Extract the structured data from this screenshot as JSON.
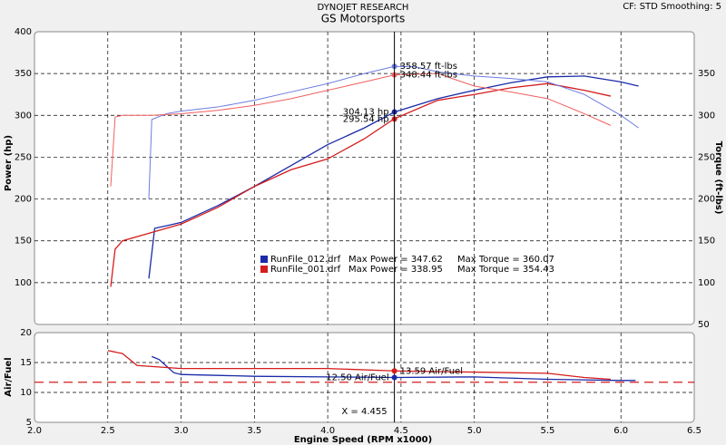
{
  "header_right": "CF: STD  Smoothing: 5",
  "chart_data": [
    {
      "type": "line",
      "title": "DYNOJET RESEARCH",
      "subtitle": "GS Motorsports",
      "ylabel": "Power (hp)",
      "y2label": "Torque (ft-lbs)",
      "xlim": [
        2.0,
        6.5
      ],
      "ylim": [
        50,
        400
      ],
      "yticks": [
        100,
        150,
        200,
        250,
        300,
        350,
        400
      ],
      "y2lim": [
        50,
        400
      ],
      "y2ticks": [
        50,
        100,
        150,
        200,
        250,
        300,
        350
      ],
      "grid": true,
      "series": [
        {
          "name": "RunFile_012.drf",
          "color": "#1a2aa8",
          "x": [
            2.78,
            2.82,
            2.9,
            3.0,
            3.25,
            3.5,
            3.75,
            4.0,
            4.25,
            4.455,
            4.75,
            5.0,
            5.25,
            5.5,
            5.75,
            6.0,
            6.12
          ],
          "values": [
            105,
            165,
            168,
            172,
            192,
            215,
            240,
            265,
            285,
            304,
            320,
            330,
            339,
            346,
            347,
            340,
            335
          ]
        },
        {
          "name": "RunFile_001.drf",
          "color": "#d41c1c",
          "x": [
            2.52,
            2.55,
            2.6,
            2.8,
            3.0,
            3.25,
            3.5,
            3.75,
            4.0,
            4.25,
            4.455,
            4.75,
            5.0,
            5.25,
            5.5,
            5.75,
            5.93
          ],
          "values": [
            95,
            140,
            150,
            160,
            170,
            190,
            215,
            235,
            248,
            272,
            296,
            318,
            325,
            333,
            338,
            330,
            323
          ]
        },
        {
          "name": "Torque 012",
          "axis": "y2",
          "color": "#6c7ce0",
          "x": [
            2.78,
            2.8,
            2.9,
            3.0,
            3.25,
            3.5,
            3.75,
            4.0,
            4.25,
            4.455,
            4.6,
            4.75,
            5.0,
            5.25,
            5.5,
            5.75,
            6.0,
            6.12
          ],
          "values": [
            200,
            295,
            302,
            305,
            310,
            318,
            328,
            338,
            350,
            358.57,
            358,
            352,
            347,
            344,
            340,
            325,
            300,
            285
          ]
        },
        {
          "name": "Torque 001",
          "axis": "y2",
          "color": "#f06060",
          "x": [
            2.52,
            2.55,
            2.6,
            2.8,
            3.0,
            3.25,
            3.5,
            3.75,
            4.0,
            4.25,
            4.455,
            4.75,
            5.0,
            5.25,
            5.5,
            5.75,
            5.93
          ],
          "values": [
            215,
            298,
            300,
            300,
            302,
            306,
            312,
            320,
            330,
            340,
            348.44,
            350,
            335,
            328,
            320,
            302,
            288
          ]
        }
      ],
      "legend": [
        {
          "file": "RunFile_012.drf",
          "power": "Max Power = 347.62",
          "torque": "Max Torque = 360.07"
        },
        {
          "file": "RunFile_001.drf",
          "power": "Max Power = 338.95",
          "torque": "Max Torque = 354.43"
        }
      ],
      "markers": [
        {
          "x": 4.455,
          "value": 304.13,
          "label": "304.13 hp",
          "series": 0,
          "anchor": "left"
        },
        {
          "x": 4.455,
          "value": 295.54,
          "label": "295.54 hp",
          "series": 1,
          "anchor": "left"
        },
        {
          "x": 4.455,
          "value": 358.57,
          "label": "358.57 ft-lbs",
          "series": 2,
          "anchor": "right"
        },
        {
          "x": 4.455,
          "value": 348.44,
          "label": "348.44 ft-lbs",
          "series": 3,
          "anchor": "right"
        }
      ]
    },
    {
      "type": "line",
      "ylabel": "Air/Fuel",
      "xlabel": "Engine Speed (RPM x1000)",
      "xlim": [
        2.0,
        6.5
      ],
      "xticks": [
        {
          "value": 2.0,
          "label": "2.0"
        },
        {
          "value": 2.5,
          "label": "2.5"
        },
        {
          "value": 3.0,
          "label": "3.0"
        },
        {
          "value": 3.5,
          "label": "3.5"
        },
        {
          "value": 4.0,
          "label": "4.0"
        },
        {
          "value": 4.5,
          "label": "4.5"
        },
        {
          "value": 5.0,
          "label": "5.0"
        },
        {
          "value": 5.5,
          "label": "5.5"
        },
        {
          "value": 6.0,
          "label": "6.0"
        },
        {
          "value": 6.5,
          "label": "6.5"
        }
      ],
      "ylim": [
        5,
        20
      ],
      "yticks": [
        5,
        10,
        15,
        20
      ],
      "grid": true,
      "reference": 11.7,
      "cursor": {
        "value": 4.455,
        "label": "X = 4.455"
      },
      "series": [
        {
          "name": "AFR 012",
          "color": "#1a2aa8",
          "x": [
            2.8,
            2.85,
            2.95,
            3.0,
            3.5,
            4.0,
            4.455,
            5.0,
            5.5,
            6.0,
            6.1
          ],
          "values": [
            16,
            15.5,
            13.3,
            13,
            12.7,
            12.6,
            12.5,
            12.6,
            12.2,
            12.0,
            12.0
          ]
        },
        {
          "name": "AFR 001",
          "color": "#d41c1c",
          "x": [
            2.5,
            2.6,
            2.7,
            3.0,
            3.5,
            4.0,
            4.455,
            5.0,
            5.5,
            5.75,
            5.93
          ],
          "values": [
            17,
            16.5,
            14.5,
            14,
            14,
            14,
            13.6,
            13.4,
            13.2,
            12.5,
            12.2
          ]
        }
      ],
      "markers": [
        {
          "x": 4.455,
          "value": 12.5,
          "label": "12.50 Air/Fuel",
          "series": 0,
          "anchor": "left"
        },
        {
          "x": 4.455,
          "value": 13.59,
          "label": "13.59 Air/Fuel",
          "series": 1,
          "anchor": "right"
        }
      ]
    }
  ]
}
